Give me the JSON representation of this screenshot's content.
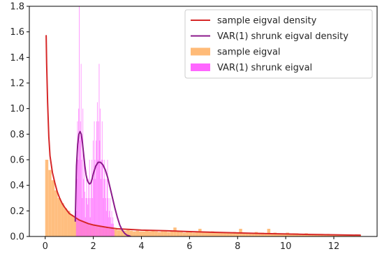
{
  "chart_data": {
    "type": "histogram+line",
    "xlim": [
      -0.66,
      13.8
    ],
    "ylim": [
      0,
      1.8
    ],
    "xticks": [
      0,
      2,
      4,
      6,
      8,
      10,
      12
    ],
    "yticks": [
      0.0,
      0.2,
      0.4,
      0.6,
      0.8,
      1.0,
      1.2,
      1.4,
      1.6,
      1.8
    ],
    "xtick_labels": [
      "0",
      "2",
      "4",
      "6",
      "8",
      "10",
      "12"
    ],
    "ytick_labels": [
      "0.0",
      "0.2",
      "0.4",
      "0.6",
      "0.8",
      "1.0",
      "1.2",
      "1.4",
      "1.6",
      "1.8"
    ],
    "grid": false,
    "legend_position": "top-right",
    "colors": {
      "sample_density": "#d62728",
      "var_density": "#8b1a8b",
      "sample_hist": "#ffbb78",
      "var_hist": "#ff66ff"
    },
    "series": [
      {
        "name": "sample eigval density",
        "kind": "line",
        "x": [
          0.04,
          0.06,
          0.1,
          0.15,
          0.2,
          0.3,
          0.4,
          0.5,
          0.6,
          0.7,
          0.8,
          1.0,
          1.2,
          1.4,
          1.6,
          1.8,
          2.0,
          2.3,
          2.6,
          3.0,
          3.5,
          4.0,
          5.0,
          6.0,
          7.0,
          8.0,
          9.0,
          10.0,
          11.0,
          12.0,
          13.1
        ],
        "y": [
          1.57,
          1.35,
          1.05,
          0.78,
          0.63,
          0.5,
          0.42,
          0.35,
          0.3,
          0.26,
          0.23,
          0.18,
          0.155,
          0.13,
          0.115,
          0.1,
          0.09,
          0.08,
          0.07,
          0.06,
          0.055,
          0.05,
          0.045,
          0.038,
          0.033,
          0.028,
          0.023,
          0.02,
          0.016,
          0.013,
          0.01
        ]
      },
      {
        "name": "VAR(1) shrunk eigval density",
        "kind": "line",
        "x": [
          1.25,
          1.3,
          1.35,
          1.4,
          1.45,
          1.5,
          1.55,
          1.6,
          1.65,
          1.7,
          1.75,
          1.8,
          1.85,
          1.9,
          1.95,
          2.0,
          2.1,
          2.2,
          2.3,
          2.4,
          2.5,
          2.6,
          2.7,
          2.8,
          2.9,
          3.0,
          3.1,
          3.2,
          3.3,
          3.4,
          3.5,
          3.55
        ],
        "y": [
          0.12,
          0.55,
          0.72,
          0.8,
          0.82,
          0.8,
          0.73,
          0.64,
          0.55,
          0.48,
          0.44,
          0.42,
          0.41,
          0.42,
          0.45,
          0.49,
          0.55,
          0.58,
          0.58,
          0.56,
          0.52,
          0.46,
          0.38,
          0.3,
          0.22,
          0.15,
          0.09,
          0.05,
          0.025,
          0.01,
          0.005,
          0.0
        ]
      },
      {
        "name": "sample eigval",
        "kind": "histogram",
        "bin_width": 0.13,
        "bin_lefts": [
          0.0,
          0.13,
          0.26,
          0.39,
          0.52,
          0.65,
          0.78,
          0.91,
          1.04,
          1.17,
          1.3,
          1.43,
          1.56,
          1.69,
          1.82,
          1.95,
          2.08,
          2.21,
          2.34,
          2.47,
          2.6,
          2.73,
          2.86,
          2.99,
          3.12,
          3.25,
          3.38,
          3.51,
          3.64,
          3.77,
          3.9,
          4.03,
          4.16,
          4.29,
          4.42,
          4.55,
          4.68,
          4.81,
          4.94,
          5.07,
          5.2,
          5.33,
          5.46,
          5.59,
          5.72,
          5.85,
          5.98,
          6.11,
          6.24,
          6.37,
          6.5,
          6.63,
          6.76,
          6.89,
          7.02,
          7.15,
          7.28,
          7.41,
          7.54,
          7.67,
          7.8,
          7.93,
          8.06,
          8.19,
          8.32,
          8.45,
          8.58,
          8.71,
          8.84,
          8.97,
          9.1,
          9.23,
          9.36,
          9.49,
          9.62,
          9.75,
          9.88,
          10.01,
          10.14,
          10.27,
          10.4,
          10.53,
          10.66,
          10.79,
          10.92,
          11.05,
          11.18,
          11.31,
          11.44,
          11.57,
          11.7,
          11.83,
          11.96,
          12.09,
          12.22,
          12.35,
          12.48,
          12.61,
          12.74,
          12.87,
          13.0
        ],
        "values": [
          0.6,
          0.52,
          0.44,
          0.36,
          0.3,
          0.26,
          0.22,
          0.2,
          0.17,
          0.15,
          0.14,
          0.12,
          0.11,
          0.1,
          0.09,
          0.085,
          0.08,
          0.075,
          0.07,
          0.065,
          0.06,
          0.06,
          0.055,
          0.05,
          0.05,
          0.045,
          0.05,
          0.045,
          0.04,
          0.045,
          0.04,
          0.04,
          0.045,
          0.04,
          0.05,
          0.04,
          0.035,
          0.04,
          0.04,
          0.035,
          0.04,
          0.07,
          0.04,
          0.035,
          0.03,
          0.04,
          0.035,
          0.03,
          0.035,
          0.06,
          0.03,
          0.03,
          0.035,
          0.04,
          0.03,
          0.03,
          0.03,
          0.035,
          0.03,
          0.03,
          0.035,
          0.03,
          0.06,
          0.025,
          0.03,
          0.03,
          0.025,
          0.035,
          0.03,
          0.03,
          0.025,
          0.06,
          0.025,
          0.03,
          0.025,
          0.025,
          0.025,
          0.03,
          0.02,
          0.025,
          0.025,
          0.02,
          0.02,
          0.025,
          0.02,
          0.02,
          0.02,
          0.02,
          0.02,
          0.015,
          0.02,
          0.015,
          0.015,
          0.015,
          0.015,
          0.015,
          0.012,
          0.012,
          0.012,
          0.01,
          0.01
        ]
      },
      {
        "name": "VAR(1) shrunk eigval",
        "kind": "histogram",
        "bin_width": 0.025,
        "bin_lefts": [
          1.28,
          1.305,
          1.33,
          1.355,
          1.38,
          1.405,
          1.43,
          1.455,
          1.48,
          1.505,
          1.53,
          1.555,
          1.58,
          1.605,
          1.63,
          1.655,
          1.68,
          1.705,
          1.73,
          1.755,
          1.78,
          1.805,
          1.83,
          1.855,
          1.88,
          1.905,
          1.93,
          1.955,
          1.98,
          2.005,
          2.03,
          2.055,
          2.08,
          2.105,
          2.13,
          2.155,
          2.18,
          2.205,
          2.23,
          2.255,
          2.28,
          2.305,
          2.33,
          2.355,
          2.38,
          2.405,
          2.43,
          2.455,
          2.48,
          2.505,
          2.53,
          2.555,
          2.58,
          2.605,
          2.63,
          2.655,
          2.68,
          2.705,
          2.73,
          2.755,
          2.78,
          2.805,
          2.83,
          2.855
        ],
        "values": [
          0.2,
          0.45,
          0.9,
          0.6,
          1.0,
          1.8,
          0.75,
          0.9,
          1.35,
          0.6,
          0.3,
          1.0,
          0.45,
          0.6,
          0.35,
          0.15,
          0.3,
          0.45,
          0.3,
          0.25,
          0.45,
          0.3,
          0.6,
          0.15,
          0.3,
          0.45,
          0.6,
          0.3,
          0.75,
          0.45,
          0.9,
          0.6,
          0.45,
          0.75,
          0.9,
          1.05,
          0.6,
          0.9,
          1.35,
          0.75,
          1.0,
          0.45,
          0.6,
          0.9,
          0.6,
          0.3,
          0.45,
          0.6,
          0.45,
          0.3,
          0.2,
          0.45,
          0.6,
          0.3,
          0.15,
          0.2,
          0.3,
          0.15,
          0.1,
          0.2,
          0.1,
          0.15,
          0.1,
          0.05
        ]
      }
    ]
  }
}
